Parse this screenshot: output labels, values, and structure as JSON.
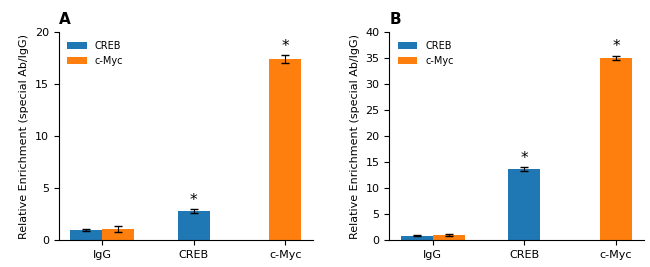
{
  "chart_data": [
    {
      "type": "bar",
      "title": "A",
      "categories": [
        "IgG",
        "CREB",
        "c-Myc"
      ],
      "series": [
        {
          "name": "CREB",
          "values": [
            1.0,
            2.8,
            null
          ],
          "errors": [
            0.12,
            0.18,
            null
          ]
        },
        {
          "name": "c-Myc",
          "values": [
            1.1,
            null,
            17.4
          ],
          "errors": [
            0.3,
            null,
            0.35
          ]
        }
      ],
      "y_label": "Relative Enrichment (special Ab/IgG)",
      "ylim": [
        0,
        20
      ],
      "yticks": [
        0,
        5,
        10,
        15,
        20
      ],
      "legend": "upper left",
      "annotations": [
        {
          "text": "*",
          "category": "CREB",
          "series": "CREB"
        },
        {
          "text": "*",
          "category": "c-Myc",
          "series": "c-Myc"
        }
      ]
    },
    {
      "type": "bar",
      "title": "B",
      "categories": [
        "IgG",
        "CREB",
        "c-Myc"
      ],
      "series": [
        {
          "name": "CREB",
          "values": [
            0.9,
            13.7,
            null
          ],
          "errors": [
            0.12,
            0.35,
            null
          ]
        },
        {
          "name": "c-Myc",
          "values": [
            1.05,
            null,
            35.0
          ],
          "errors": [
            0.2,
            null,
            0.45
          ]
        }
      ],
      "y_label": "Relative Enrichment (special Ab/IgG)",
      "ylim": [
        0,
        40
      ],
      "yticks": [
        0,
        5,
        10,
        15,
        20,
        25,
        30,
        35,
        40
      ],
      "legend": "upper left",
      "annotations": [
        {
          "text": "*",
          "category": "CREB",
          "series": "CREB"
        },
        {
          "text": "*",
          "category": "c-Myc",
          "series": "c-Myc"
        }
      ]
    }
  ]
}
